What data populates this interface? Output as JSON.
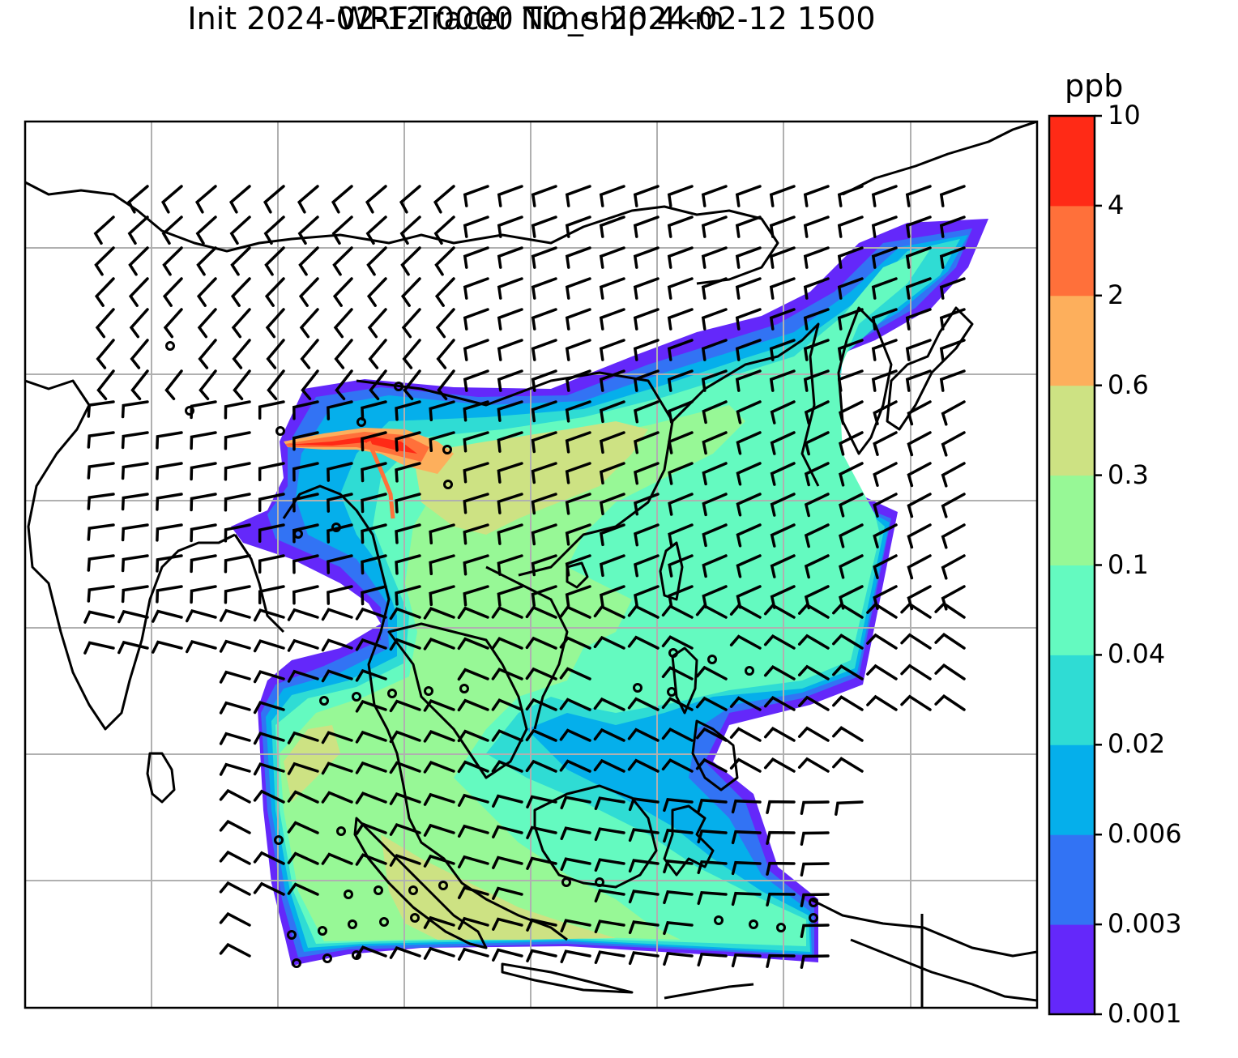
{
  "figure": {
    "title_line1": "WRF-Tracer NO_ship 4km",
    "title_line2": "Init 2024-02-12 0000 Time 2024-02-12 1500"
  },
  "colorbar": {
    "unit": "ppb",
    "levels": [
      "0.001",
      "0.003",
      "0.006",
      "0.02",
      "0.04",
      "0.1",
      "0.3",
      "0.6",
      "2",
      "4",
      "10"
    ],
    "colors": [
      "#6428fa",
      "#3273f4",
      "#05afeb",
      "#2fdcd4",
      "#64fac0",
      "#97f896",
      "#cde283",
      "#fdaf5c",
      "#ff703a",
      "#ff2a16"
    ]
  },
  "map": {
    "projection": "lat-lon grid",
    "gridlines": true,
    "overlay": "wind barbs",
    "field": "NO_ship tracer concentration"
  }
}
